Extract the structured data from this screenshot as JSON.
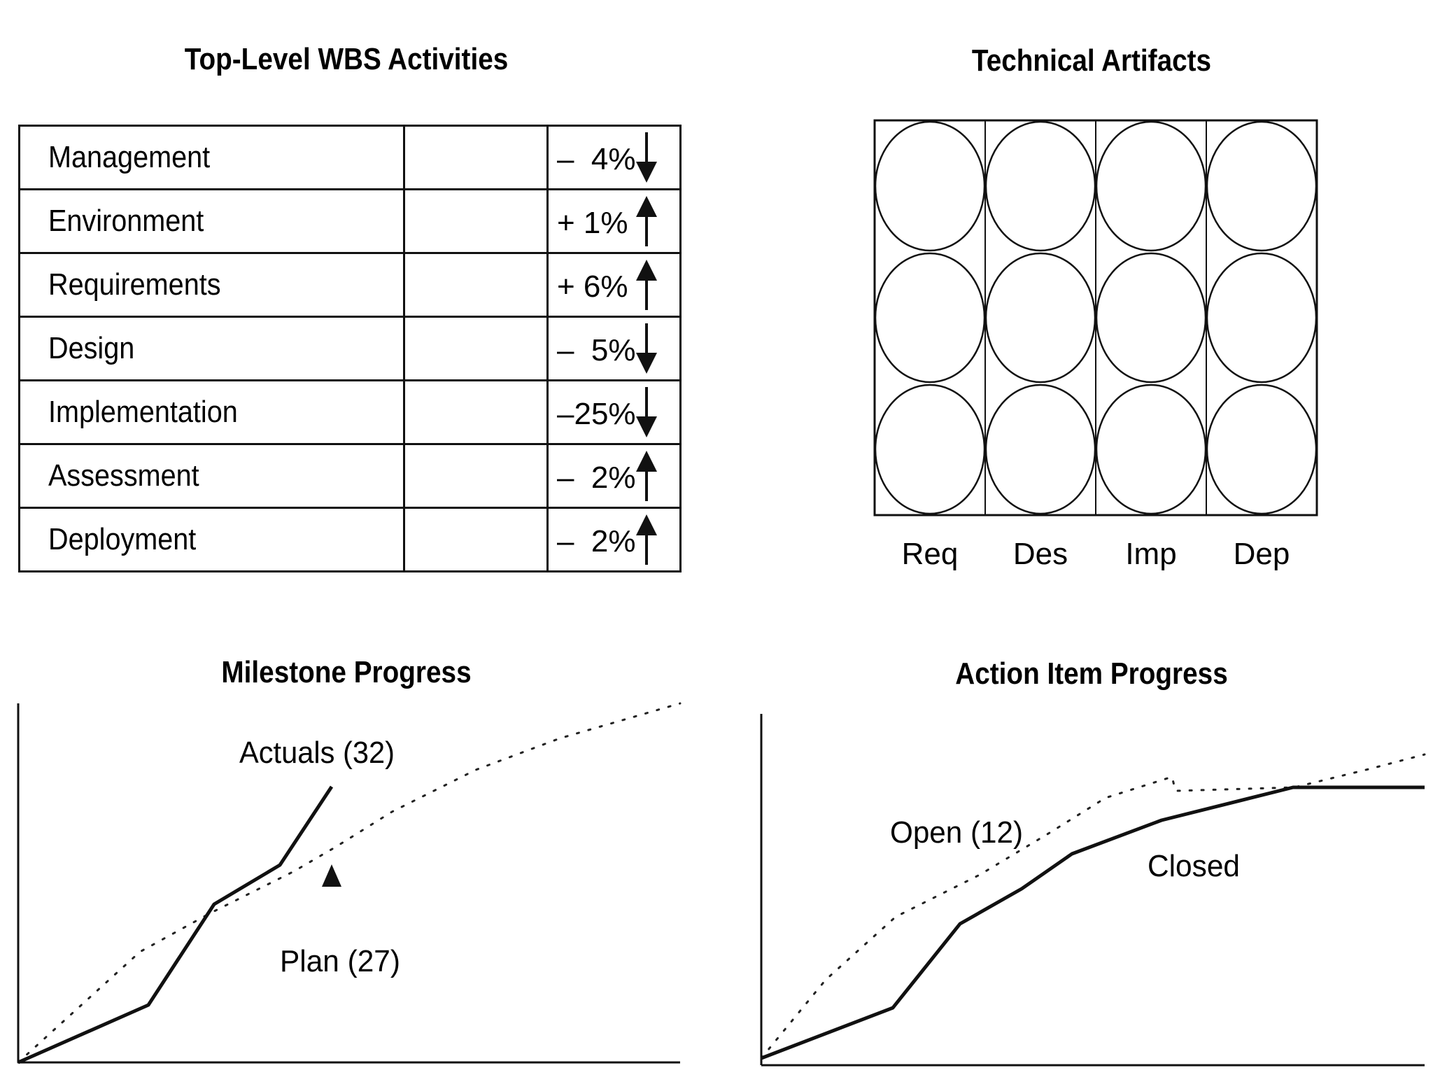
{
  "wbs": {
    "title": "Top-Level WBS Activities",
    "rows": [
      {
        "name": "Management",
        "value": "–  4%",
        "direction": "down"
      },
      {
        "name": "Environment",
        "value": "+ 1%",
        "direction": "up"
      },
      {
        "name": "Requirements",
        "value": "+ 6%",
        "direction": "up"
      },
      {
        "name": "Design",
        "value": "–  5%",
        "direction": "down"
      },
      {
        "name": "Implementation",
        "value": "–25%",
        "direction": "down"
      },
      {
        "name": "Assessment",
        "value": "–  2%",
        "direction": "up"
      },
      {
        "name": "Deployment",
        "value": "–  2%",
        "direction": "up"
      }
    ]
  },
  "artifacts": {
    "title": "Technical Artifacts",
    "columns": [
      "Req",
      "Des",
      "Imp",
      "Dep"
    ],
    "rows": 3
  },
  "milestone": {
    "title": "Milestone Progress",
    "actual_label": "Actuals (32)",
    "plan_label": "Plan (27)"
  },
  "action": {
    "title": "Action Item Progress",
    "open_label": "Open (12)",
    "closed_label": "Closed"
  }
}
